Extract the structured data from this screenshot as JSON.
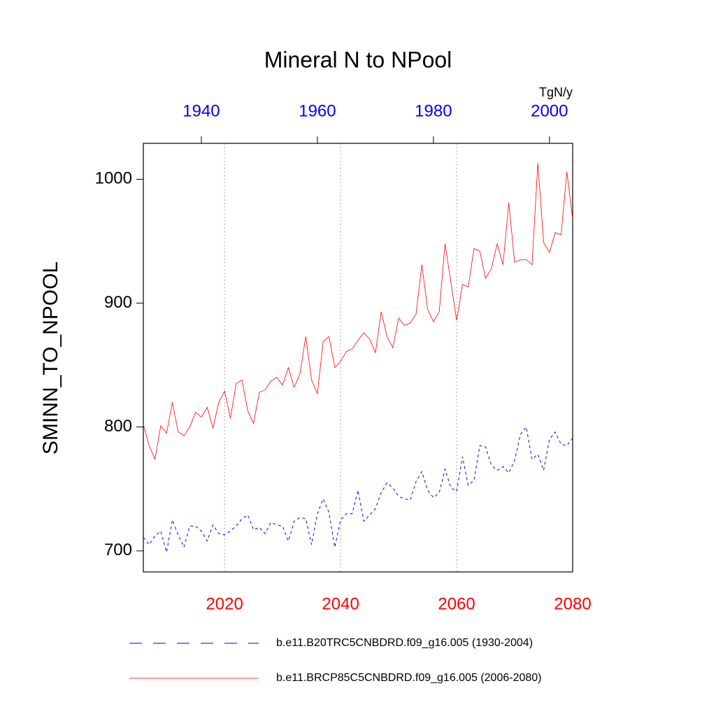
{
  "chart_data": {
    "type": "line",
    "title": "Mineral N to NPool",
    "ylabel": "SMINN_TO_NPOOL",
    "units": "TgN/y",
    "xlim": [
      2006,
      2080
    ],
    "xticks": [
      2020,
      2040,
      2060,
      2080
    ],
    "xtick_color": "#ff0000",
    "x2lim": [
      1930,
      2004
    ],
    "x2ticks": [
      1940,
      1960,
      1980,
      2000
    ],
    "x2tick_color": "#0000ff",
    "ylim": [
      683,
      1029
    ],
    "yticks": [
      700,
      800,
      900,
      1000
    ],
    "xgrid": true,
    "series": [
      {
        "name": "b.e11.B20TRC5CNBDRD.f09_g16.005 (1930-2004)",
        "color": "#0000ff",
        "dash": true,
        "axis": "x2",
        "x": [
          1930,
          1931,
          1932,
          1933,
          1934,
          1935,
          1936,
          1937,
          1938,
          1939,
          1940,
          1941,
          1942,
          1943,
          1944,
          1945,
          1946,
          1947,
          1948,
          1949,
          1950,
          1951,
          1952,
          1953,
          1954,
          1955,
          1956,
          1957,
          1958,
          1959,
          1960,
          1961,
          1962,
          1963,
          1964,
          1965,
          1966,
          1967,
          1968,
          1969,
          1970,
          1971,
          1972,
          1973,
          1974,
          1975,
          1976,
          1977,
          1978,
          1979,
          1980,
          1981,
          1982,
          1983,
          1984,
          1985,
          1986,
          1987,
          1988,
          1989,
          1990,
          1991,
          1992,
          1993,
          1994,
          1995,
          1996,
          1997,
          1998,
          1999,
          2000,
          2001,
          2002,
          2003,
          2004
        ],
        "values": [
          711,
          705,
          712,
          716,
          699,
          725,
          713,
          703,
          720,
          720,
          716,
          708,
          721,
          714,
          713,
          716,
          720,
          726,
          729,
          717,
          719,
          714,
          723,
          721,
          720,
          708,
          724,
          727,
          726,
          705,
          730,
          742,
          731,
          703,
          725,
          730,
          730,
          749,
          724,
          729,
          734,
          747,
          755,
          751,
          744,
          742,
          741,
          756,
          764,
          749,
          743,
          747,
          766,
          751,
          748,
          776,
          753,
          757,
          785,
          784,
          769,
          765,
          768,
          763,
          773,
          794,
          800,
          774,
          778,
          765,
          790,
          796,
          786,
          785,
          791
        ]
      },
      {
        "name": "b.e11.BRCP85C5CNBDRD.f09_g16.005 (2006-2080)",
        "color": "#ff0000",
        "dash": false,
        "axis": "x",
        "x": [
          2006,
          2007,
          2008,
          2009,
          2010,
          2011,
          2012,
          2013,
          2014,
          2015,
          2016,
          2017,
          2018,
          2019,
          2020,
          2021,
          2022,
          2023,
          2024,
          2025,
          2026,
          2027,
          2028,
          2029,
          2030,
          2031,
          2032,
          2033,
          2034,
          2035,
          2036,
          2037,
          2038,
          2039,
          2040,
          2041,
          2042,
          2043,
          2044,
          2045,
          2046,
          2047,
          2048,
          2049,
          2050,
          2051,
          2052,
          2053,
          2054,
          2055,
          2056,
          2057,
          2058,
          2059,
          2060,
          2061,
          2062,
          2063,
          2064,
          2065,
          2066,
          2067,
          2068,
          2069,
          2070,
          2071,
          2072,
          2073,
          2074,
          2075,
          2076,
          2077,
          2078,
          2079,
          2080
        ],
        "values": [
          802,
          785,
          774,
          801,
          795,
          820,
          796,
          793,
          800,
          812,
          808,
          816,
          799,
          820,
          829,
          807,
          835,
          838,
          813,
          803,
          828,
          830,
          837,
          840,
          834,
          848,
          832,
          843,
          873,
          838,
          827,
          869,
          873,
          848,
          853,
          861,
          863,
          870,
          876,
          871,
          860,
          893,
          873,
          864,
          888,
          882,
          884,
          891,
          931,
          895,
          885,
          893,
          948,
          917,
          886,
          915,
          913,
          944,
          942,
          920,
          928,
          948,
          931,
          981,
          933,
          935,
          935,
          931,
          1013,
          949,
          941,
          957,
          955,
          1006,
          968
        ]
      }
    ]
  }
}
